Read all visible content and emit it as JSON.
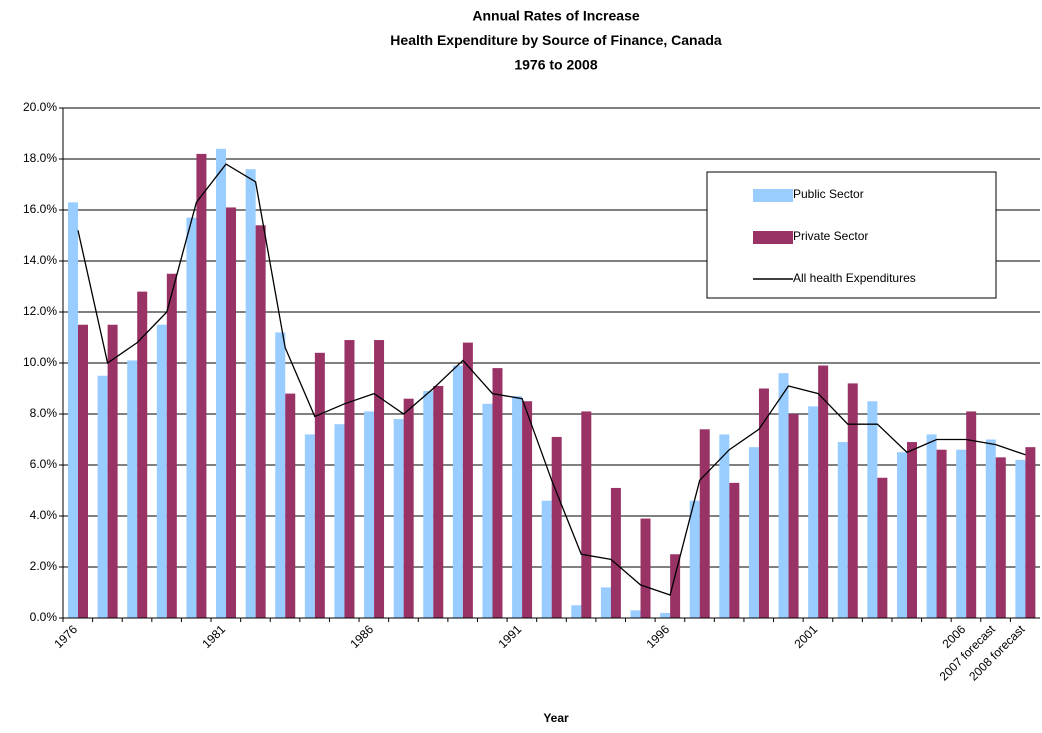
{
  "chart_data": {
    "type": "bar",
    "title": [
      "Annual Rates of Increase",
      "Health Expenditure by Source of Finance, Canada",
      "1976 to 2008"
    ],
    "x_label": "Year",
    "categories": [
      "1976",
      null,
      null,
      null,
      null,
      "1981",
      null,
      null,
      null,
      null,
      "1986",
      null,
      null,
      null,
      null,
      "1991",
      null,
      null,
      null,
      null,
      "1996",
      null,
      null,
      null,
      null,
      "2001",
      null,
      null,
      null,
      null,
      "2006",
      "2007 forecast",
      "2008 forecast"
    ],
    "series": [
      {
        "name": "Public Sector",
        "type": "bar",
        "color": "#99ccff",
        "values": [
          16.3,
          9.5,
          10.1,
          11.5,
          15.7,
          18.4,
          17.6,
          11.2,
          7.2,
          7.6,
          8.1,
          7.8,
          8.9,
          9.9,
          8.4,
          8.7,
          4.6,
          0.5,
          1.2,
          0.3,
          0.2,
          4.6,
          7.2,
          6.7,
          9.6,
          8.3,
          6.9,
          8.5,
          6.5,
          7.2,
          6.6,
          7.0,
          6.2
        ]
      },
      {
        "name": "Private Sector",
        "type": "bar",
        "color": "#993366",
        "values": [
          11.5,
          11.5,
          12.8,
          13.5,
          18.2,
          16.1,
          15.4,
          8.8,
          10.4,
          10.9,
          10.9,
          8.6,
          9.1,
          10.8,
          9.8,
          8.5,
          7.1,
          8.1,
          5.1,
          3.9,
          2.5,
          7.4,
          5.3,
          9.0,
          8.0,
          9.9,
          9.2,
          5.5,
          6.9,
          6.6,
          8.1,
          6.3,
          6.7
        ]
      },
      {
        "name": "All health Expenditures",
        "type": "line",
        "color": "#000000",
        "values": [
          15.2,
          10.0,
          10.8,
          12.0,
          16.3,
          17.8,
          17.1,
          10.6,
          7.9,
          8.4,
          8.8,
          8.0,
          9.0,
          10.1,
          8.8,
          8.6,
          5.4,
          2.5,
          2.3,
          1.3,
          0.9,
          5.4,
          6.6,
          7.4,
          9.1,
          8.8,
          7.6,
          7.6,
          6.5,
          7.0,
          7.0,
          6.8,
          6.4
        ]
      }
    ],
    "ylim": [
      0,
      20
    ],
    "yticks": [
      {
        "value": 0,
        "label": "0.0%"
      },
      {
        "value": 2,
        "label": "2.0%"
      },
      {
        "value": 4,
        "label": "4.0%"
      },
      {
        "value": 6,
        "label": "6.0%"
      },
      {
        "value": 8,
        "label": "8.0%"
      },
      {
        "value": 10,
        "label": "10.0%"
      },
      {
        "value": 12,
        "label": "12.0%"
      },
      {
        "value": 14,
        "label": "14.0%"
      },
      {
        "value": 16,
        "label": "16.0%"
      },
      {
        "value": 18,
        "label": "18.0%"
      },
      {
        "value": 20,
        "label": "20.0%"
      }
    ],
    "grid": true,
    "legend": "upper right"
  }
}
